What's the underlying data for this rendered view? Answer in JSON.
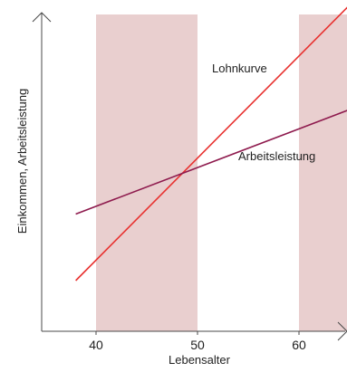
{
  "chart_data": {
    "type": "line",
    "xlabel": "Lebensalter",
    "ylabel": "Einkommen, Arbeitsleistung",
    "xlim": [
      30,
      65
    ],
    "ylim": [
      0,
      100
    ],
    "x_ticks": [
      40,
      50,
      60
    ],
    "grid": false,
    "shaded_bands": [
      {
        "from": 40,
        "to": 50
      },
      {
        "from": 60,
        "to": 65
      }
    ],
    "series": [
      {
        "name": "Lohnkurve",
        "color": "#e8312f",
        "points": [
          [
            38,
            16
          ],
          [
            65,
            103
          ]
        ]
      },
      {
        "name": "Arbeitsleistung",
        "color": "#8e1a4d",
        "points": [
          [
            38,
            37
          ],
          [
            65,
            70
          ]
        ]
      }
    ],
    "colors": {
      "band": "#e9cfcf",
      "axis": "#4a4a4a"
    }
  }
}
